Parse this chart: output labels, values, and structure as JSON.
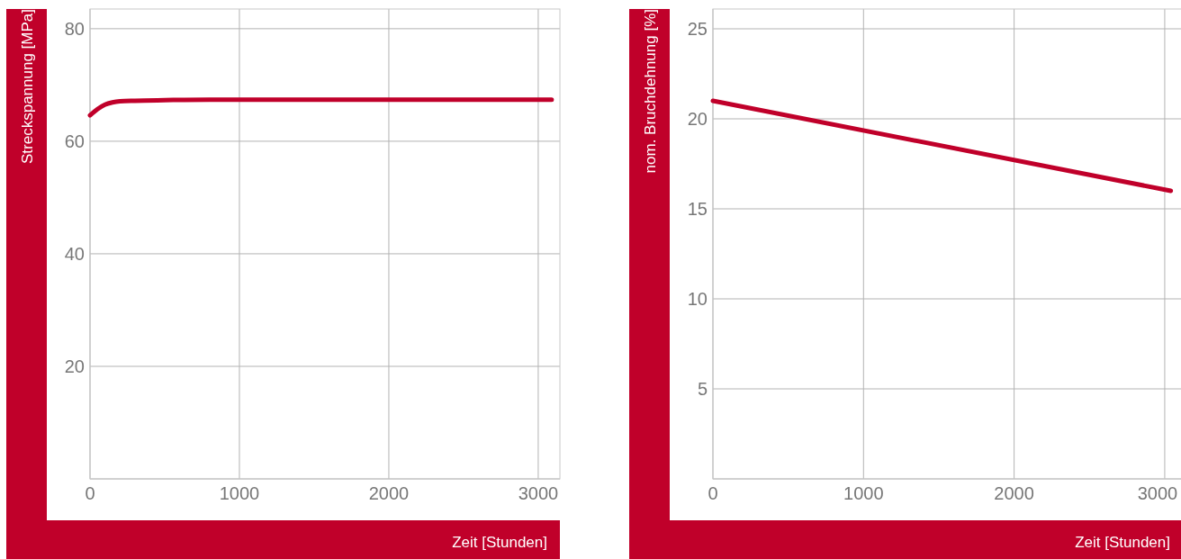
{
  "chart_data": [
    {
      "type": "line",
      "xlabel": "Zeit [Stunden]",
      "ylabel": "Streckspannung [MPa]",
      "x": [
        0,
        50,
        100,
        150,
        200,
        300,
        500,
        800,
        1000,
        2000,
        3090
      ],
      "series": [
        {
          "color": "#c0002a",
          "values": [
            64.6,
            65.7,
            66.5,
            66.9,
            67.1,
            67.2,
            67.3,
            67.4,
            67.4,
            67.4,
            67.4
          ]
        }
      ],
      "xlim": [
        0,
        3145
      ],
      "ylim": [
        0,
        83.5
      ],
      "xticks": [
        0,
        1000,
        2000,
        3000
      ],
      "yticks": [
        {
          "value": 0,
          "label": null
        },
        20,
        40,
        60,
        80
      ],
      "grid": true
    },
    {
      "type": "line",
      "xlabel": "Zeit [Stunden]",
      "ylabel": "nom. Bruchdehnung [%]",
      "x": [
        0,
        3040
      ],
      "series": [
        {
          "color": "#c0002a",
          "values": [
            21,
            16
          ]
        }
      ],
      "xlim": [
        0,
        3120
      ],
      "ylim": [
        0,
        26.1
      ],
      "xticks": [
        0,
        1000,
        2000,
        3000
      ],
      "yticks": [
        {
          "value": 0,
          "label": null
        },
        5,
        10,
        15,
        20,
        25
      ],
      "grid": true
    }
  ]
}
